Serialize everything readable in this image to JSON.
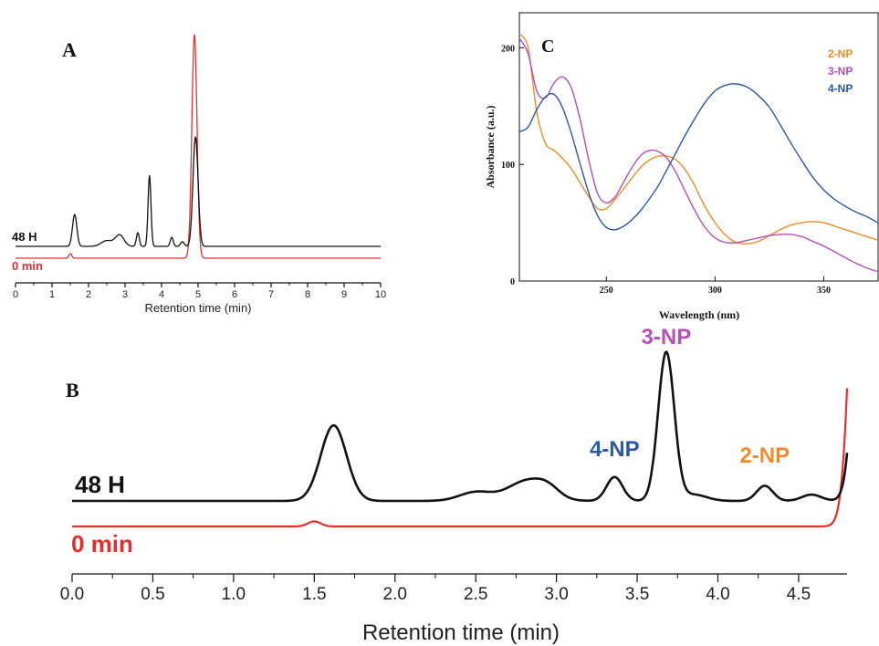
{
  "panel_labels": {
    "a": "A",
    "b": "B",
    "c": "C"
  },
  "colors": {
    "black": "#111111",
    "red": "#e03030",
    "orange": "#f08c28",
    "purple": "#b64fb8",
    "blue": "#2d57a8"
  },
  "chart_data": [
    {
      "id": "A",
      "type": "line",
      "xlabel": "Retention time (min)",
      "ylabel": "",
      "xlim": [
        0,
        10
      ],
      "xticks": [
        0,
        1,
        2,
        3,
        4,
        5,
        6,
        7,
        8,
        9,
        10
      ],
      "xtick_labels": [
        "0",
        "1",
        "2",
        "3",
        "4",
        "5",
        "6",
        "7",
        "8",
        "9",
        "10"
      ],
      "series_labels": [
        "48 H",
        "0 min"
      ],
      "series": [
        {
          "name": "48 H",
          "color": "#111111",
          "baseline": 0,
          "peaks": [
            [
              1.62,
              28,
              0.06
            ],
            [
              2.5,
              5,
              0.15
            ],
            [
              2.85,
              10,
              0.12
            ],
            [
              3.35,
              12,
              0.04
            ],
            [
              3.67,
              62,
              0.04
            ],
            [
              4.28,
              8,
              0.04
            ],
            [
              4.57,
              4,
              0.05
            ],
            [
              4.93,
              96,
              0.07
            ]
          ],
          "ylim": [
            -6,
            138
          ]
        },
        {
          "name": "0 min",
          "color": "#e03030",
          "baseline": 0,
          "peaks": [
            [
              1.5,
              4,
              0.04
            ],
            [
              4.9,
              196,
              0.07
            ]
          ],
          "ylim": [
            -4,
            196
          ]
        }
      ]
    },
    {
      "id": "B",
      "type": "line",
      "xlabel": "Retention time (min)",
      "ylabel": "",
      "xlim": [
        0,
        4.8
      ],
      "xticks": [
        0,
        0.5,
        1,
        1.5,
        2,
        2.5,
        3,
        3.5,
        4,
        4.5
      ],
      "xtick_labels": [
        "0.0",
        "0.5",
        "1.0",
        "1.5",
        "2.0",
        "2.5",
        "3.0",
        "3.5",
        "4.0",
        "4.5"
      ],
      "series_labels": [
        "48 H",
        "0 min"
      ],
      "annotations": [
        {
          "text": "4-NP",
          "x": 3.36,
          "color": "#2d57a8"
        },
        {
          "text": "3-NP",
          "x": 3.68,
          "color": "#b64fb8"
        },
        {
          "text": "2-NP",
          "x": 4.29,
          "color": "#f08c28"
        }
      ],
      "series": [
        {
          "name": "48 H",
          "color": "#111111",
          "baseline": 0,
          "peaks": [
            [
              1.62,
              60,
              0.08
            ],
            [
              2.5,
              7,
              0.1
            ],
            [
              2.82,
              16,
              0.12
            ],
            [
              2.95,
              6,
              0.07
            ],
            [
              3.36,
              19,
              0.05
            ],
            [
              3.68,
              118,
              0.05
            ],
            [
              3.85,
              5,
              0.08
            ],
            [
              4.29,
              12,
              0.05
            ],
            [
              4.58,
              5,
              0.06
            ],
            [
              4.93,
              400,
              0.06
            ]
          ]
        },
        {
          "name": "0 min",
          "color": "#e03030",
          "baseline": 0,
          "peaks": [
            [
              1.5,
              4,
              0.04
            ],
            [
              4.9,
              440,
              0.06
            ]
          ]
        }
      ],
      "ylim": [
        -20,
        240
      ]
    },
    {
      "id": "C",
      "type": "line",
      "xlabel": "Wavelength (nm)",
      "ylabel": "Absorbance (a.u.)",
      "xlim": [
        210,
        375
      ],
      "ylim": [
        0,
        230
      ],
      "xticks": [
        250,
        300,
        350
      ],
      "yticks": [
        0,
        100,
        200
      ],
      "legend_position": "top-right",
      "series": [
        {
          "name": "2-NP",
          "color": "#f08c28",
          "x": [
            210,
            214,
            218,
            222,
            226,
            230,
            234,
            238,
            242,
            246,
            250,
            254,
            258,
            262,
            266,
            270,
            274,
            278,
            282,
            286,
            290,
            295,
            300,
            305,
            310,
            315,
            320,
            325,
            330,
            335,
            340,
            345,
            350,
            355,
            360,
            365,
            370,
            375
          ],
          "y": [
            212,
            200,
            145,
            118,
            112,
            105,
            96,
            84,
            72,
            62,
            62,
            70,
            79,
            89,
            98,
            104,
            107,
            107,
            104,
            96,
            84,
            65,
            50,
            39,
            33,
            32,
            34,
            39,
            44,
            48,
            50,
            51,
            50,
            47,
            44,
            41,
            38,
            35
          ]
        },
        {
          "name": "3-NP",
          "color": "#b64fb8",
          "x": [
            210,
            214,
            218,
            222,
            226,
            230,
            234,
            238,
            242,
            246,
            250,
            254,
            258,
            262,
            266,
            270,
            274,
            278,
            282,
            286,
            290,
            295,
            300,
            305,
            310,
            315,
            320,
            325,
            330,
            335,
            340,
            345,
            350,
            355,
            360,
            365,
            370,
            375
          ],
          "y": [
            208,
            195,
            163,
            157,
            170,
            175,
            165,
            138,
            103,
            75,
            67,
            72,
            85,
            98,
            108,
            112,
            111,
            105,
            93,
            78,
            63,
            47,
            37,
            33,
            33,
            35,
            37,
            39,
            40,
            40,
            38,
            34,
            30,
            25,
            20,
            15,
            11,
            8
          ]
        },
        {
          "name": "4-NP",
          "color": "#2d57a8",
          "x": [
            210,
            214,
            218,
            222,
            226,
            230,
            234,
            238,
            242,
            246,
            250,
            254,
            258,
            262,
            266,
            270,
            274,
            278,
            282,
            286,
            290,
            295,
            300,
            305,
            310,
            315,
            320,
            325,
            330,
            335,
            340,
            345,
            350,
            355,
            360,
            365,
            370,
            375
          ],
          "y": [
            128,
            132,
            147,
            158,
            160,
            148,
            126,
            100,
            75,
            56,
            46,
            44,
            47,
            53,
            61,
            71,
            82,
            96,
            110,
            124,
            137,
            152,
            163,
            168,
            169,
            166,
            159,
            149,
            134,
            118,
            103,
            89,
            78,
            70,
            64,
            59,
            55,
            50
          ]
        }
      ]
    }
  ]
}
